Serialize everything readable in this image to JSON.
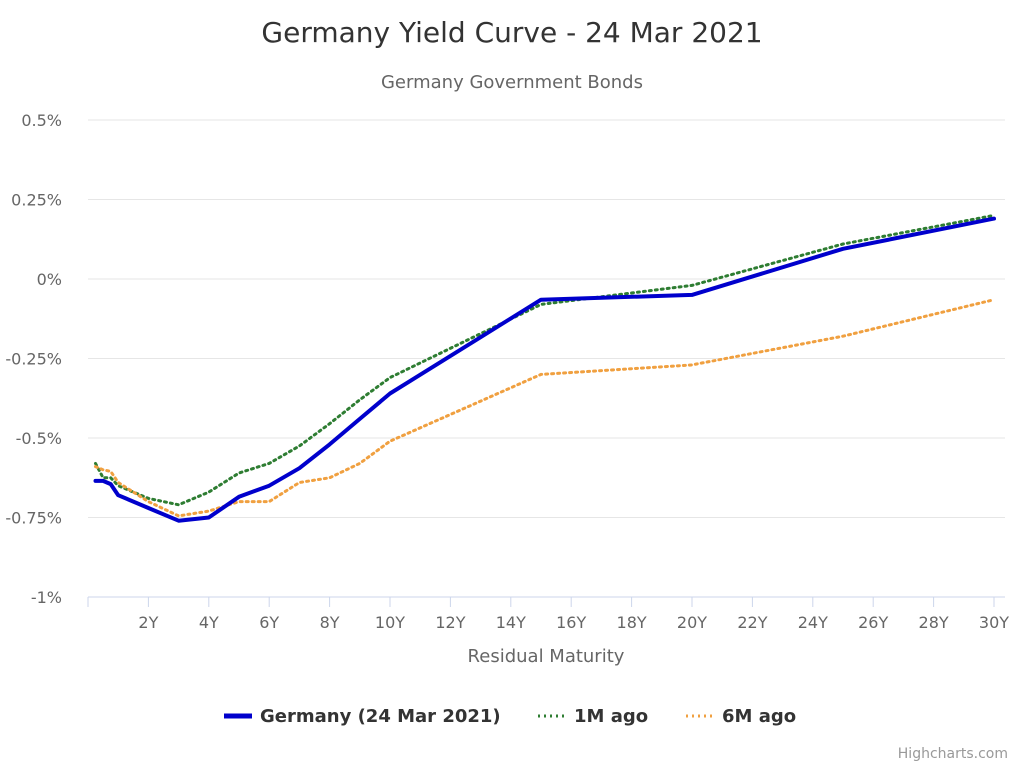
{
  "chart_data": {
    "type": "line",
    "title": "Germany Yield Curve - 24 Mar 2021",
    "subtitle": "Germany Government Bonds",
    "xlabel": "Residual Maturity",
    "ylabel": "",
    "xlim": [
      0,
      30
    ],
    "ylim": [
      -1,
      0.5
    ],
    "x_tick_values": [
      2,
      4,
      6,
      8,
      10,
      12,
      14,
      16,
      18,
      20,
      22,
      24,
      26,
      28,
      30
    ],
    "x_tick_labels": [
      "2Y",
      "4Y",
      "6Y",
      "8Y",
      "10Y",
      "12Y",
      "14Y",
      "16Y",
      "18Y",
      "20Y",
      "22Y",
      "24Y",
      "26Y",
      "28Y",
      "30Y"
    ],
    "y_tick_values": [
      0.5,
      0.25,
      0,
      -0.25,
      -0.5,
      -0.75,
      -1
    ],
    "y_tick_labels": [
      "0.5%",
      "0.25%",
      "0%",
      "-0.25%",
      "-0.5%",
      "-0.75%",
      "-1%"
    ],
    "grid": true,
    "legend_position": "bottom-center",
    "series": [
      {
        "name": "Germany (24 Mar 2021)",
        "color": "#0000cc",
        "style": "solid",
        "points": [
          [
            0.25,
            -0.635
          ],
          [
            0.5,
            -0.635
          ],
          [
            0.75,
            -0.645
          ],
          [
            1,
            -0.68
          ],
          [
            2,
            -0.72
          ],
          [
            3,
            -0.76
          ],
          [
            4,
            -0.75
          ],
          [
            5,
            -0.685
          ],
          [
            6,
            -0.65
          ],
          [
            7,
            -0.595
          ],
          [
            8,
            -0.52
          ],
          [
            9,
            -0.44
          ],
          [
            10,
            -0.36
          ],
          [
            15,
            -0.065
          ],
          [
            20,
            -0.05
          ],
          [
            25,
            0.095
          ],
          [
            30,
            0.19
          ]
        ]
      },
      {
        "name": "1M ago",
        "color": "#2e7d32",
        "style": "dotted",
        "points": [
          [
            0.25,
            -0.58
          ],
          [
            0.5,
            -0.625
          ],
          [
            0.75,
            -0.625
          ],
          [
            1,
            -0.65
          ],
          [
            2,
            -0.69
          ],
          [
            3,
            -0.71
          ],
          [
            4,
            -0.67
          ],
          [
            5,
            -0.61
          ],
          [
            6,
            -0.58
          ],
          [
            7,
            -0.525
          ],
          [
            8,
            -0.455
          ],
          [
            9,
            -0.38
          ],
          [
            10,
            -0.31
          ],
          [
            15,
            -0.08
          ],
          [
            20,
            -0.02
          ],
          [
            25,
            0.11
          ],
          [
            30,
            0.2
          ]
        ]
      },
      {
        "name": "6M ago",
        "color": "#f0a040",
        "style": "dotted",
        "points": [
          [
            0.25,
            -0.59
          ],
          [
            0.5,
            -0.6
          ],
          [
            0.75,
            -0.605
          ],
          [
            1,
            -0.64
          ],
          [
            2,
            -0.7
          ],
          [
            3,
            -0.745
          ],
          [
            4,
            -0.73
          ],
          [
            5,
            -0.7
          ],
          [
            6,
            -0.7
          ],
          [
            7,
            -0.64
          ],
          [
            8,
            -0.625
          ],
          [
            9,
            -0.58
          ],
          [
            10,
            -0.51
          ],
          [
            15,
            -0.3
          ],
          [
            20,
            -0.27
          ],
          [
            25,
            -0.18
          ],
          [
            30,
            -0.065
          ]
        ]
      }
    ],
    "credits": "Highcharts.com"
  }
}
